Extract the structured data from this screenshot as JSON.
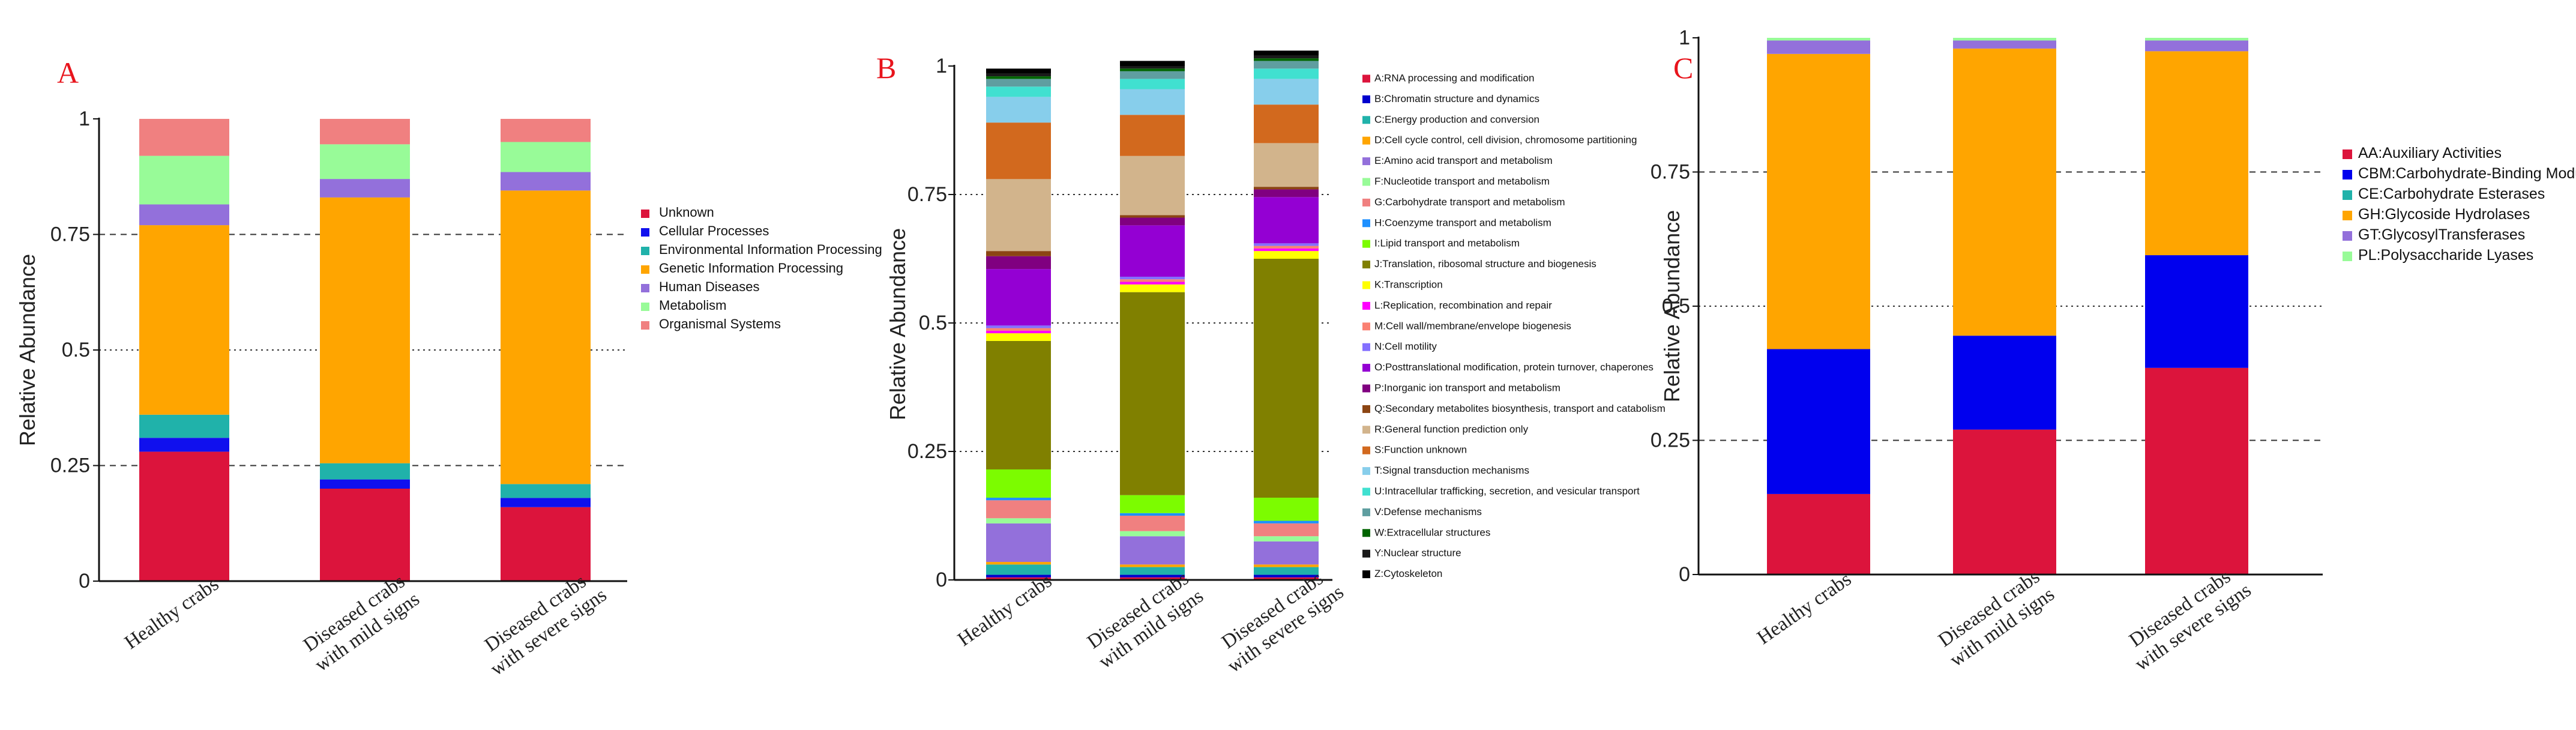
{
  "chart_data": [
    {
      "type": "bar",
      "stacked": true,
      "panel": "A",
      "ylabel": "Relative Abundance",
      "ylim": [
        0,
        1
      ],
      "yticks": [
        "0",
        "0.25",
        "0.5",
        "0.75",
        "1"
      ],
      "grid": "dashed at 0.25 and 0.75, dotted at 0.5",
      "legend_position": "right",
      "categories": [
        "Healthy crabs",
        "Diseased crabs\nwith mild signs",
        "Diseased crabs\nwith severe signs"
      ],
      "series": [
        {
          "name": "Unknown",
          "color": "#dc143c",
          "values": [
            0.28,
            0.2,
            0.16
          ]
        },
        {
          "name": "Cellular Processes",
          "color": "#1010ee",
          "values": [
            0.03,
            0.02,
            0.02
          ]
        },
        {
          "name": "Environmental Information Processing",
          "color": "#20b2aa",
          "values": [
            0.05,
            0.035,
            0.03
          ]
        },
        {
          "name": "Genetic Information Processing",
          "color": "#ffa500",
          "values": [
            0.41,
            0.575,
            0.635
          ]
        },
        {
          "name": "Human Diseases",
          "color": "#9370db",
          "values": [
            0.045,
            0.04,
            0.04
          ]
        },
        {
          "name": "Metabolism",
          "color": "#98fb98",
          "values": [
            0.105,
            0.075,
            0.065
          ]
        },
        {
          "name": "Organismal Systems",
          "color": "#f08080",
          "values": [
            0.08,
            0.055,
            0.05
          ]
        }
      ]
    },
    {
      "type": "bar",
      "stacked": true,
      "panel": "B",
      "ylabel": "Relative Abundance",
      "ylim": [
        0,
        1
      ],
      "yticks": [
        "0",
        "0.25",
        "0.5",
        "0.75",
        "1"
      ],
      "grid": "dotted at 0.25, 0.5, 0.75",
      "legend_position": "right",
      "categories": [
        "Healthy crabs",
        "Diseased crabs\nwith mild signs",
        "Diseased crabs\nwith severe signs"
      ],
      "series": [
        {
          "name": "A:RNA processing and modification",
          "color": "#dc143c",
          "values": [
            0.005,
            0.005,
            0.005
          ]
        },
        {
          "name": "B:Chromatin structure and dynamics",
          "color": "#0000cd",
          "values": [
            0.005,
            0.005,
            0.005
          ]
        },
        {
          "name": "C:Energy production and conversion",
          "color": "#20b2aa",
          "values": [
            0.02,
            0.015,
            0.015
          ]
        },
        {
          "name": "D:Cell cycle control, cell division, chromosome partitioning",
          "color": "#ffa500",
          "values": [
            0.005,
            0.005,
            0.005
          ]
        },
        {
          "name": "E:Amino acid transport and metabolism",
          "color": "#9370db",
          "values": [
            0.075,
            0.055,
            0.045
          ]
        },
        {
          "name": "F:Nucleotide transport and metabolism",
          "color": "#98fb98",
          "values": [
            0.01,
            0.01,
            0.01
          ]
        },
        {
          "name": "G:Carbohydrate transport and metabolism",
          "color": "#f08080",
          "values": [
            0.035,
            0.03,
            0.025
          ]
        },
        {
          "name": "H:Coenzyme transport and metabolism",
          "color": "#1e90ff",
          "values": [
            0.005,
            0.005,
            0.005
          ]
        },
        {
          "name": "I:Lipid transport and metabolism",
          "color": "#7cfc00",
          "values": [
            0.055,
            0.035,
            0.045
          ]
        },
        {
          "name": "J:Translation, ribosomal structure and biogenesis",
          "color": "#808000",
          "values": [
            0.25,
            0.395,
            0.465
          ]
        },
        {
          "name": "K:Transcription",
          "color": "#ffff00",
          "values": [
            0.015,
            0.015,
            0.015
          ]
        },
        {
          "name": "L:Replication, recombination and repair",
          "color": "#ff00ff",
          "values": [
            0.005,
            0.005,
            0.005
          ]
        },
        {
          "name": "M:Cell wall/membrane/envelope biogenesis",
          "color": "#fa8072",
          "values": [
            0.005,
            0.005,
            0.005
          ]
        },
        {
          "name": "N:Cell motility",
          "color": "#8470ff",
          "values": [
            0.005,
            0.005,
            0.005
          ]
        },
        {
          "name": "O:Posttranslational modification, protein turnover, chaperones",
          "color": "#9400d3",
          "values": [
            0.11,
            0.1,
            0.09
          ]
        },
        {
          "name": "P:Inorganic ion transport and metabolism",
          "color": "#800080",
          "values": [
            0.025,
            0.015,
            0.015
          ]
        },
        {
          "name": "Q:Secondary metabolites biosynthesis, transport and catabolism",
          "color": "#8b4513",
          "values": [
            0.01,
            0.005,
            0.005
          ]
        },
        {
          "name": "R:General function prediction only",
          "color": "#d2b48c",
          "values": [
            0.14,
            0.115,
            0.085
          ]
        },
        {
          "name": "S:Function unknown",
          "color": "#d2691e",
          "values": [
            0.11,
            0.08,
            0.075
          ]
        },
        {
          "name": "T:Signal transduction mechanisms",
          "color": "#87ceeb",
          "values": [
            0.05,
            0.05,
            0.05
          ]
        },
        {
          "name": "U:Intracellular trafficking, secretion, and vesicular transport",
          "color": "#40e0d0",
          "values": [
            0.02,
            0.02,
            0.02
          ]
        },
        {
          "name": "V:Defense mechanisms",
          "color": "#5f9ea0",
          "values": [
            0.015,
            0.015,
            0.015
          ]
        },
        {
          "name": "W:Extracellular structures",
          "color": "#006400",
          "values": [
            0.005,
            0.005,
            0.005
          ]
        },
        {
          "name": "Y:Nuclear structure",
          "color": "#1a1a1a",
          "values": [
            0.005,
            0.005,
            0.005
          ]
        },
        {
          "name": "Z:Cytoskeleton",
          "color": "#000000",
          "values": [
            0.01,
            0.01,
            0.01
          ]
        }
      ]
    },
    {
      "type": "bar",
      "stacked": true,
      "panel": "C",
      "ylabel": "Relative Abundance",
      "ylim": [
        0,
        1
      ],
      "yticks": [
        "0",
        "0.25",
        "0.5",
        "0.75",
        "1"
      ],
      "grid": "dashed at 0.25 and 0.75, dotted at 0.5",
      "legend_position": "right",
      "categories": [
        "Healthy crabs",
        "Diseased crabs\nwith mild signs",
        "Diseased crabs\nwith severe signs"
      ],
      "series": [
        {
          "name": "AA:Auxiliary Activities",
          "color": "#dc143c",
          "values": [
            0.15,
            0.27,
            0.385
          ]
        },
        {
          "name": "CBM:Carbohydrate-Binding Modules",
          "color": "#0000ee",
          "values": [
            0.27,
            0.175,
            0.21
          ]
        },
        {
          "name": "CE:Carbohydrate Esterases",
          "color": "#20b2aa",
          "values": [
            0.0,
            0.0,
            0.0
          ]
        },
        {
          "name": "GH:Glycoside Hydrolases",
          "color": "#ffa500",
          "values": [
            0.55,
            0.535,
            0.38
          ]
        },
        {
          "name": "GT:GlycosylTransferases",
          "color": "#9370db",
          "values": [
            0.025,
            0.015,
            0.02
          ]
        },
        {
          "name": "PL:Polysaccharide Lyases",
          "color": "#98fb98",
          "values": [
            0.005,
            0.005,
            0.005
          ]
        }
      ]
    }
  ]
}
